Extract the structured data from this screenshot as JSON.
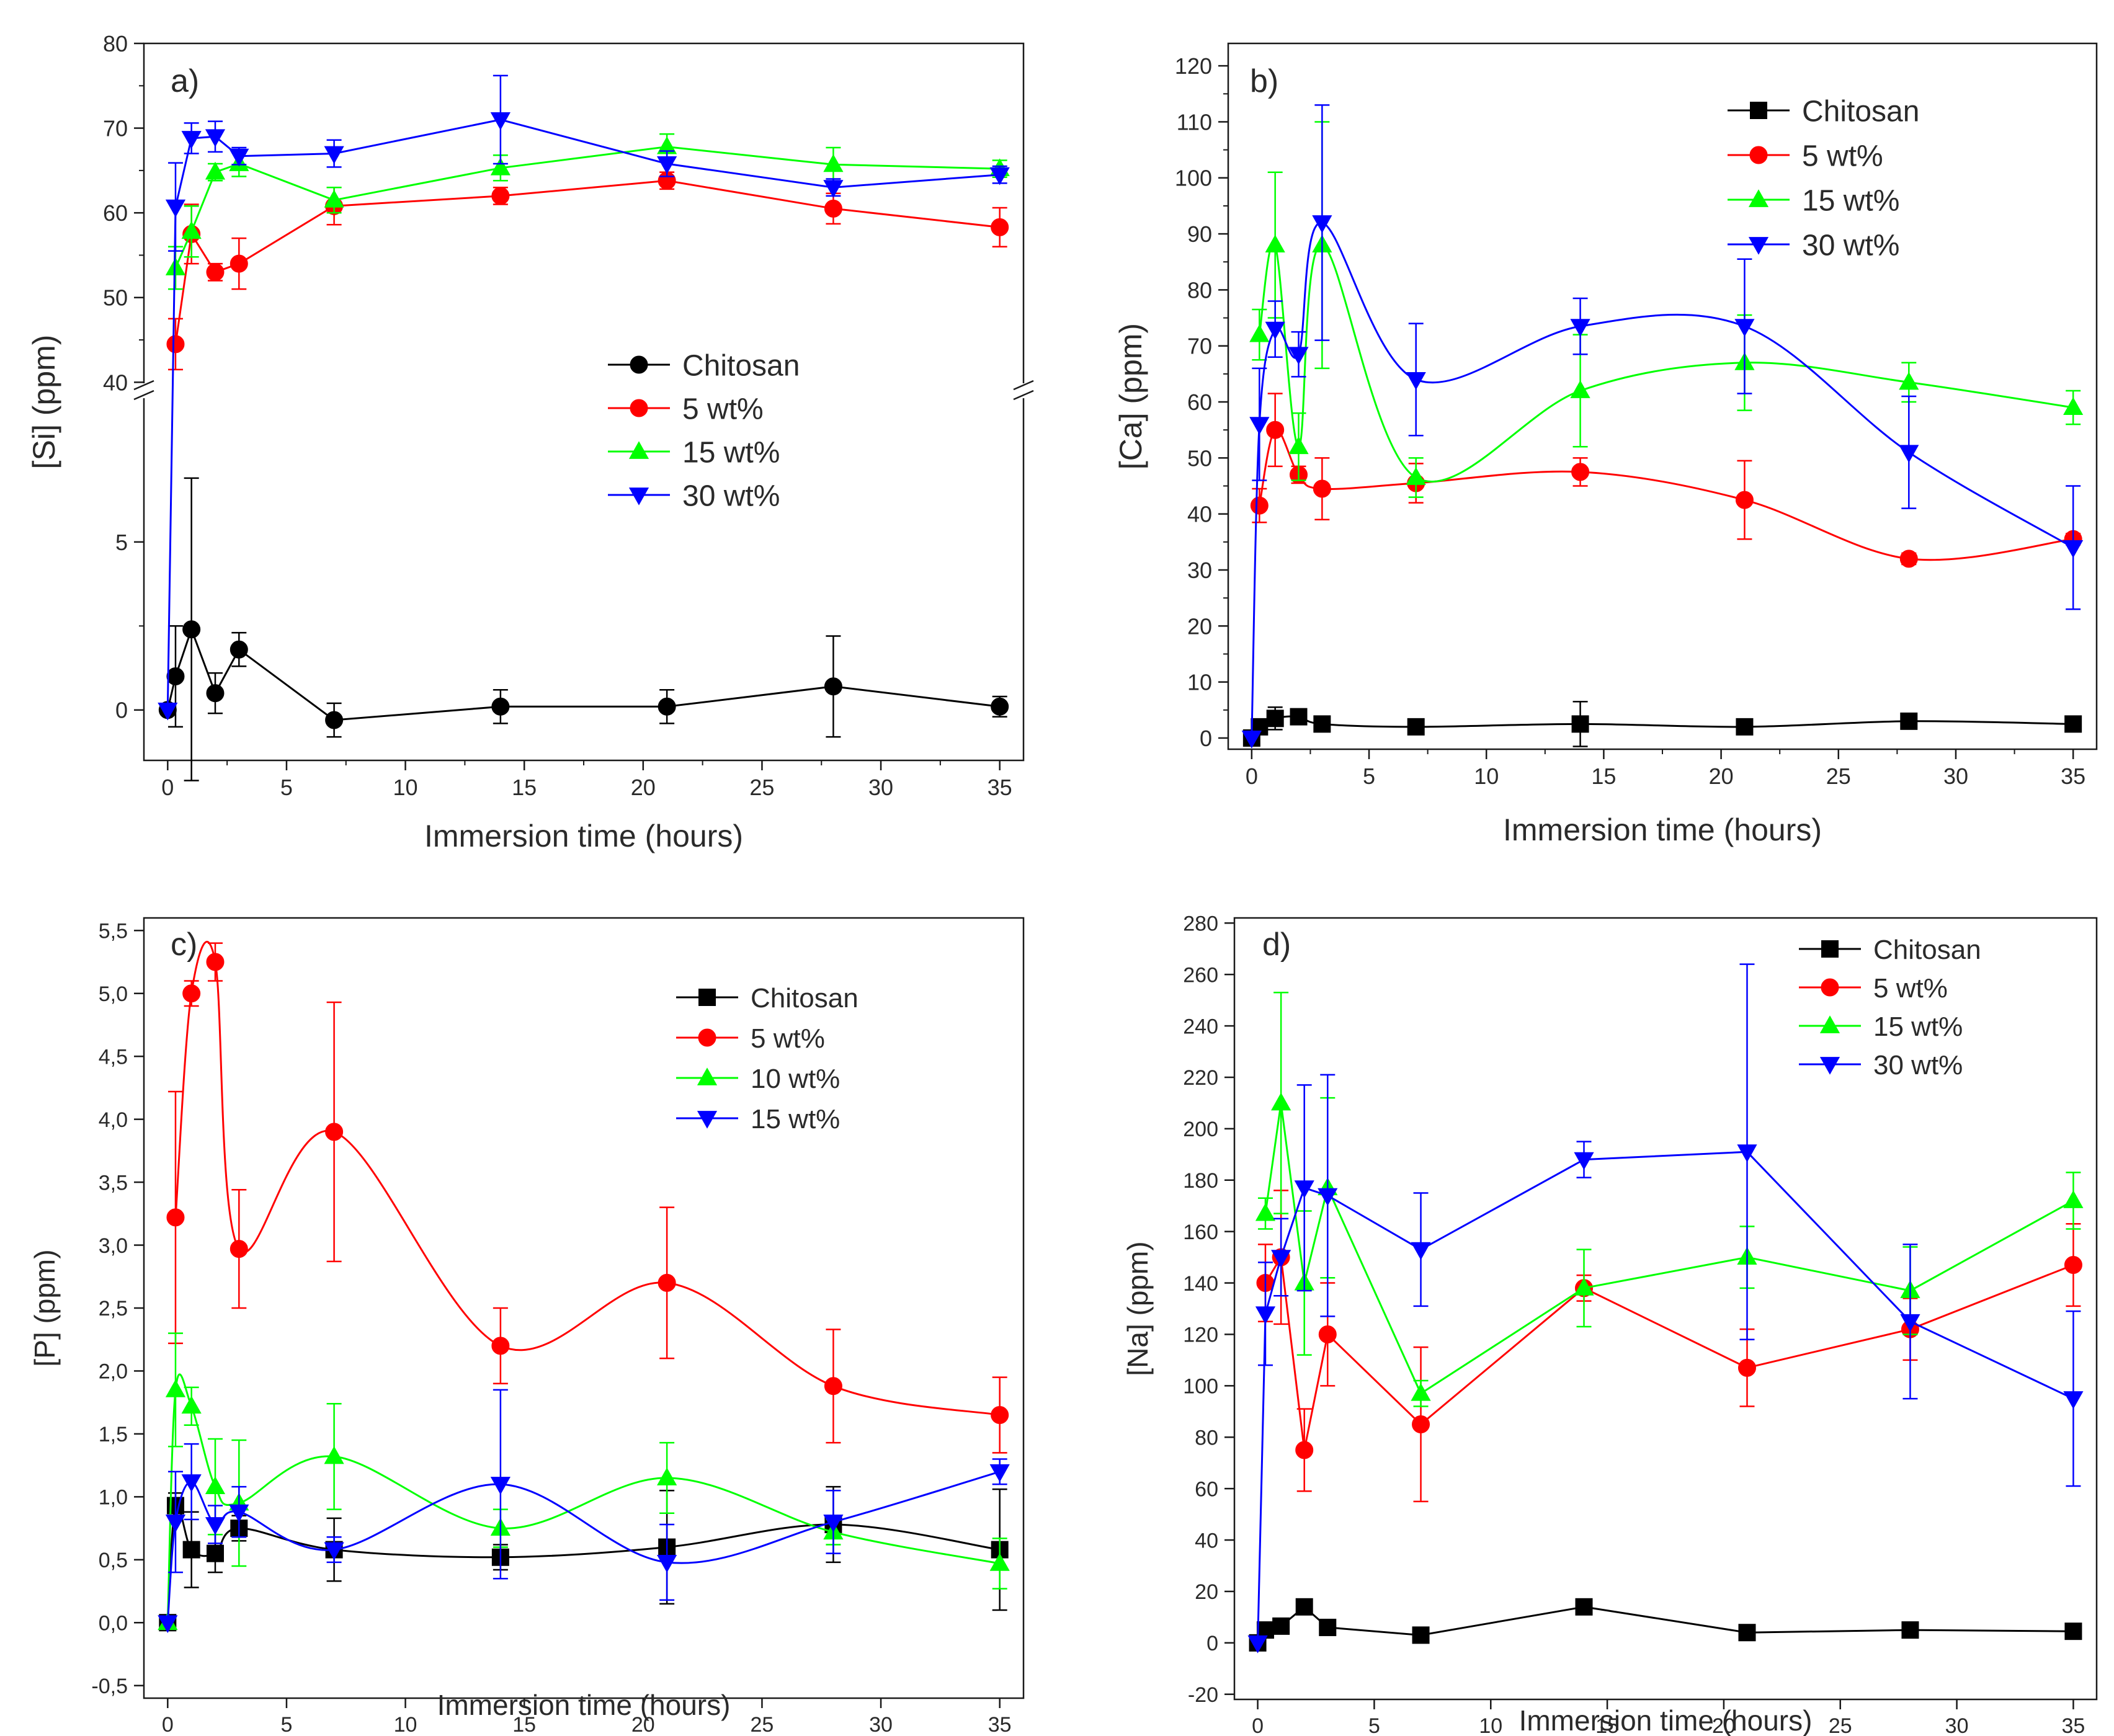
{
  "panels": [
    {
      "panel_label": "a)",
      "broken_axis": true,
      "chart_data": {
        "type": "line",
        "title": "a)",
        "xlabel": "Immersion time (hours)",
        "ylabel": "[Si] (ppm)",
        "xlim": [
          -1,
          36
        ],
        "xticks": [
          0,
          5,
          10,
          15,
          20,
          25,
          30,
          35
        ],
        "xtick_labels": [
          "0",
          "5",
          "10",
          "15",
          "20",
          "25",
          "30",
          "35"
        ],
        "ylim_lower": [
          -1.5,
          9.5
        ],
        "ylim_upper": [
          39,
          80
        ],
        "yticks_lower": [
          0,
          5
        ],
        "yticks_upper": [
          40,
          50,
          60,
          70,
          80
        ],
        "ytick_labels_lower": [
          "0",
          "5"
        ],
        "ytick_labels_upper": [
          "40",
          "50",
          "60",
          "70",
          "80"
        ],
        "legend_position": "middle-right",
        "series": [
          {
            "name": "Chitosan",
            "color": "#000000",
            "marker": "circle",
            "x": [
              0,
              0.33,
              1,
              2,
              3,
              7,
              14,
              21,
              28,
              35
            ],
            "y": [
              0,
              1.0,
              2.4,
              0.5,
              1.8,
              -0.3,
              0.1,
              0.1,
              0.7,
              0.1
            ],
            "err": [
              0,
              1.5,
              4.5,
              0.6,
              0.5,
              0.5,
              0.5,
              0.5,
              1.5,
              0.3
            ]
          },
          {
            "name": "5 wt%",
            "color": "#ff0000",
            "marker": "circle",
            "x": [
              0.33,
              1,
              2,
              3,
              7,
              14,
              21,
              28,
              35
            ],
            "y": [
              44.5,
              57.5,
              53,
              54,
              60.8,
              62,
              63.8,
              60.5,
              58.3
            ],
            "err": [
              3,
              3.5,
              1,
              3,
              2.2,
              1,
              1,
              1.8,
              2.3
            ]
          },
          {
            "name": "15 wt%",
            "color": "#00ff00",
            "marker": "triangle-up",
            "x": [
              0.33,
              1,
              2,
              3,
              7,
              14,
              21,
              28,
              35
            ],
            "y": [
              53.5,
              57.8,
              64.8,
              65.8,
              61.5,
              65.3,
              67.8,
              65.7,
              65.2
            ],
            "err": [
              2.5,
              3,
              1,
              1.5,
              1.5,
              1.5,
              1.5,
              2,
              1
            ]
          },
          {
            "name": "30 wt%",
            "color": "#0000ff",
            "marker": "triangle-down",
            "x": [
              0,
              0.33,
              1,
              2,
              3,
              7,
              14,
              21,
              28,
              35
            ],
            "y": [
              0,
              60.7,
              68.8,
              69,
              66.7,
              67,
              71,
              65.8,
              63,
              64.5
            ],
            "err": [
              0,
              5.2,
              1.8,
              1.8,
              1,
              1.6,
              5.2,
              1.5,
              1,
              1
            ]
          }
        ]
      }
    },
    {
      "panel_label": "b)",
      "broken_axis": false,
      "chart_data": {
        "type": "line",
        "title": "b)",
        "xlabel": "Immersion time (hours)",
        "ylabel": "[Ca] (ppm)",
        "xlim": [
          -1,
          36
        ],
        "ylim": [
          -2,
          124
        ],
        "xticks": [
          0,
          5,
          10,
          15,
          20,
          25,
          30,
          35
        ],
        "xtick_labels": [
          "0",
          "5",
          "10",
          "15",
          "20",
          "25",
          "30",
          "35"
        ],
        "yticks": [
          0,
          10,
          20,
          30,
          40,
          50,
          60,
          70,
          80,
          90,
          100,
          110,
          120
        ],
        "ytick_labels": [
          "0",
          "10",
          "20",
          "30",
          "40",
          "50",
          "60",
          "70",
          "80",
          "90",
          "100",
          "110",
          "120"
        ],
        "legend_position": "top-right",
        "series": [
          {
            "name": "Chitosan",
            "color": "#000000",
            "marker": "square",
            "x": [
              0,
              0.33,
              1,
              2,
              3,
              7,
              14,
              21,
              28,
              35
            ],
            "y": [
              0,
              2,
              3.5,
              3.8,
              2.5,
              2,
              2.5,
              2,
              3,
              2.5
            ],
            "err": [
              0,
              1,
              2,
              1,
              0.5,
              1,
              4,
              1,
              1,
              0.5
            ]
          },
          {
            "name": "5 wt%",
            "color": "#ff0000",
            "marker": "circle",
            "x": [
              0.33,
              1,
              2,
              3,
              7,
              14,
              21,
              28,
              35
            ],
            "y": [
              41.5,
              55,
              47,
              44.5,
              45.5,
              47.5,
              42.5,
              32,
              35.5
            ],
            "err": [
              3,
              6.5,
              1.5,
              5.5,
              3.5,
              2.5,
              7,
              1,
              1
            ]
          },
          {
            "name": "15 wt%",
            "color": "#00ff00",
            "marker": "triangle-up",
            "x": [
              0.33,
              1,
              2,
              3,
              7,
              14,
              21,
              28,
              35
            ],
            "y": [
              72,
              88,
              52,
              88,
              46.5,
              62,
              67,
              63.5,
              59
            ],
            "err": [
              4.5,
              13,
              6,
              22,
              3.5,
              10,
              8.5,
              3.5,
              3
            ]
          },
          {
            "name": "30 wt%",
            "color": "#0000ff",
            "marker": "triangle-down",
            "x": [
              0,
              0.33,
              1,
              2,
              3,
              7,
              14,
              21,
              28,
              35
            ],
            "y": [
              0,
              56,
              73,
              68.5,
              92,
              64,
              73.5,
              73.5,
              51,
              34
            ],
            "err": [
              0,
              10,
              5,
              4,
              21,
              10,
              5,
              12,
              10,
              11
            ]
          }
        ]
      }
    },
    {
      "panel_label": "c)",
      "broken_axis": false,
      "chart_data": {
        "type": "line",
        "title": "c)",
        "xlabel": "Immersion time (hours)",
        "ylabel": "[P] (ppm)",
        "xlim": [
          -1,
          36
        ],
        "ylim": [
          -0.6,
          5.6
        ],
        "xticks": [
          0,
          5,
          10,
          15,
          20,
          25,
          30,
          35
        ],
        "xtick_labels": [
          "0",
          "5",
          "10",
          "15",
          "20",
          "25",
          "30",
          "35"
        ],
        "yticks": [
          -0.5,
          0,
          0.5,
          1,
          1.5,
          2,
          2.5,
          3,
          3.5,
          4,
          4.5,
          5,
          5.5
        ],
        "ytick_labels": [
          "-0,5",
          "0,0",
          "0,5",
          "1,0",
          "1,5",
          "2,0",
          "2,5",
          "3,0",
          "3,5",
          "4,0",
          "4,5",
          "5,0",
          "5,5"
        ],
        "legend_position": "top-right",
        "series": [
          {
            "name": "Chitosan",
            "color": "#000000",
            "marker": "square",
            "x": [
              0,
              0.33,
              1,
              2,
              3,
              7,
              14,
              21,
              28,
              35
            ],
            "y": [
              0,
              0.93,
              0.58,
              0.55,
              0.75,
              0.58,
              0.52,
              0.6,
              0.78,
              0.58
            ],
            "err": [
              0,
              0.1,
              0.3,
              0.15,
              0.1,
              0.25,
              0.1,
              0.45,
              0.3,
              0.48
            ]
          },
          {
            "name": "5 wt%",
            "color": "#ff0000",
            "marker": "circle",
            "x": [
              0.33,
              1,
              2,
              3,
              7,
              14,
              21,
              28,
              35
            ],
            "y": [
              3.22,
              5.0,
              5.25,
              2.97,
              3.9,
              2.2,
              2.7,
              1.88,
              1.65
            ],
            "err": [
              1.0,
              0.1,
              0.15,
              0.47,
              1.03,
              0.3,
              0.6,
              0.45,
              0.3
            ]
          },
          {
            "name": "10 wt%",
            "color": "#00ff00",
            "marker": "triangle-up",
            "x": [
              0,
              0.33,
              1,
              2,
              3,
              7,
              14,
              21,
              28,
              35
            ],
            "y": [
              0,
              1.85,
              1.72,
              1.08,
              0.95,
              1.32,
              0.75,
              1.15,
              0.72,
              0.47
            ],
            "err": [
              0,
              0.45,
              0.15,
              0.38,
              0.5,
              0.42,
              0.15,
              0.28,
              0.1,
              0.2
            ]
          },
          {
            "name": "15 wt%",
            "color": "#0000ff",
            "marker": "triangle-down",
            "x": [
              0,
              0.33,
              1,
              2,
              3,
              7,
              14,
              21,
              28,
              35
            ],
            "y": [
              0,
              0.8,
              1.12,
              0.78,
              0.88,
              0.58,
              1.1,
              0.48,
              0.8,
              1.2
            ],
            "err": [
              0,
              0.4,
              0.3,
              0.15,
              0.2,
              0.1,
              0.75,
              0.3,
              0.25,
              0.1
            ]
          }
        ]
      }
    },
    {
      "panel_label": "d)",
      "broken_axis": false,
      "chart_data": {
        "type": "line",
        "title": "d)",
        "xlabel": "Immersion time (hours)",
        "ylabel": "[Na] (ppm)",
        "xlim": [
          -1,
          36
        ],
        "ylim": [
          -22,
          282
        ],
        "xticks": [
          0,
          5,
          10,
          15,
          20,
          25,
          30,
          35
        ],
        "xtick_labels": [
          "0",
          "5",
          "10",
          "15",
          "20",
          "25",
          "30",
          "35"
        ],
        "yticks": [
          -20,
          0,
          20,
          40,
          60,
          80,
          100,
          120,
          140,
          160,
          180,
          200,
          220,
          240,
          260,
          280
        ],
        "ytick_labels": [
          "-20",
          "0",
          "20",
          "40",
          "60",
          "80",
          "100",
          "120",
          "140",
          "160",
          "180",
          "200",
          "220",
          "240",
          "260",
          "280"
        ],
        "legend_position": "top-right",
        "series": [
          {
            "name": "Chitosan",
            "color": "#000000",
            "marker": "square",
            "x": [
              0,
              0.33,
              1,
              2,
              3,
              7,
              14,
              21,
              28,
              35
            ],
            "y": [
              0,
              5,
              6.5,
              14,
              6,
              3,
              14,
              4,
              5,
              4.5
            ],
            "err": [
              0,
              0,
              0,
              0,
              0,
              0,
              0,
              0,
              0,
              0
            ]
          },
          {
            "name": "5 wt%",
            "color": "#ff0000",
            "marker": "circle",
            "x": [
              0.33,
              1,
              2,
              3,
              7,
              14,
              21,
              28,
              35
            ],
            "y": [
              140,
              150,
              75,
              120,
              85,
              138,
              107,
              122,
              147
            ],
            "err": [
              15,
              26,
              16,
              20,
              30,
              5,
              15,
              12,
              16
            ]
          },
          {
            "name": "15 wt%",
            "color": "#00ff00",
            "marker": "triangle-up",
            "x": [
              0.33,
              1,
              2,
              3,
              7,
              14,
              21,
              28,
              35
            ],
            "y": [
              167,
              210,
              140,
              177,
              97,
              138,
              150,
              137,
              172
            ],
            "err": [
              6,
              43,
              28,
              35,
              5,
              15,
              12,
              17,
              11
            ]
          },
          {
            "name": "30 wt%",
            "color": "#0000ff",
            "marker": "triangle-down",
            "x": [
              0,
              0.33,
              1,
              2,
              3,
              7,
              14,
              21,
              28,
              35
            ],
            "y": [
              0,
              128,
              150,
              177,
              174,
              153,
              188,
              191,
              125,
              95
            ],
            "err": [
              0,
              20,
              15,
              40,
              47,
              22,
              7,
              73,
              30,
              34
            ]
          }
        ]
      }
    }
  ]
}
